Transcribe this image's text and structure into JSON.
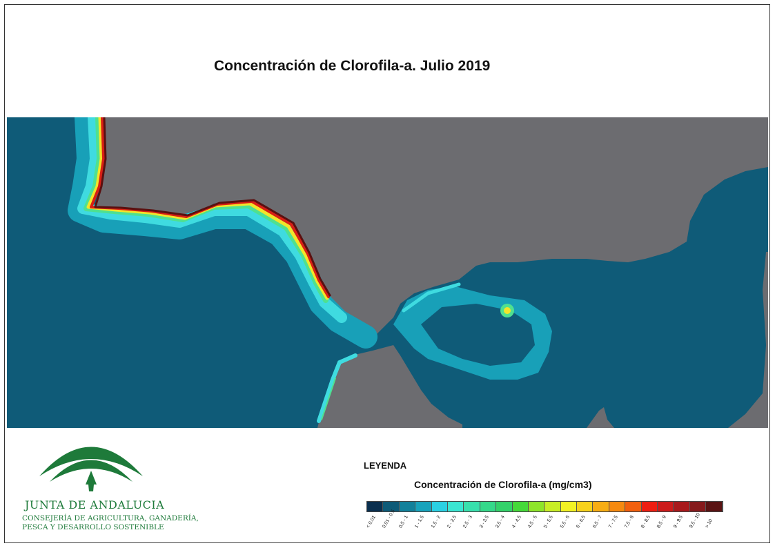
{
  "title": "Concentración de Clorofila-a. Julio 2019",
  "colors": {
    "sea": "#0f5b78",
    "land": "#6c6c70",
    "coast_shelf": "#18a0b8",
    "coast_bright": "#3fdbe0",
    "coast_green": "#4fe090",
    "coast_yellow": "#f2e52a",
    "coast_red": "#d81f14",
    "coast_dark": "#5a1010",
    "logo_green": "#1e7a3a"
  },
  "logo": {
    "name": "JUNTA DE ANDALUCIA",
    "subtitle_line1": "CONSEJERÍA DE AGRICULTURA, GANADERÍA,",
    "subtitle_line2": "PESCA Y DESARROLLO SOSTENIBLE"
  },
  "legend": {
    "heading": "LEYENDA",
    "title": "Concentración de Clorofila-a (mg/cm3)",
    "classes": [
      {
        "label": "< 0.01",
        "color": "#0a2f4f"
      },
      {
        "label": "0.01 - 0.5",
        "color": "#0f5b78"
      },
      {
        "label": "0.5 - 1",
        "color": "#12819b"
      },
      {
        "label": "1 - 1.5",
        "color": "#18a3bc"
      },
      {
        "label": "1.5 - 2",
        "color": "#2bd0e3"
      },
      {
        "label": "2 - 2.5",
        "color": "#3ae6d2"
      },
      {
        "label": "2.5 - 3",
        "color": "#38e0ad"
      },
      {
        "label": "3 - 3.5",
        "color": "#35d98a"
      },
      {
        "label": "3.5 - 4",
        "color": "#33d26a"
      },
      {
        "label": "4 - 4.5",
        "color": "#45d93a"
      },
      {
        "label": "4.5 - 5",
        "color": "#8ee52a"
      },
      {
        "label": "5 - 5.5",
        "color": "#c8ee26"
      },
      {
        "label": "5.5 - 6",
        "color": "#f2f224"
      },
      {
        "label": "6 - 6.5",
        "color": "#f7d21c"
      },
      {
        "label": "6.5 - 7",
        "color": "#f7ad14"
      },
      {
        "label": "7 - 7.5",
        "color": "#f68a10"
      },
      {
        "label": "7.5 - 8",
        "color": "#f2600e"
      },
      {
        "label": "8 - 8.5",
        "color": "#ee1e12"
      },
      {
        "label": "8.5 - 9",
        "color": "#cc1b1b"
      },
      {
        "label": "9 - 9.5",
        "color": "#a8191c"
      },
      {
        "label": "9.5 - 10",
        "color": "#861a1c"
      },
      {
        "label": "> 10",
        "color": "#5a1414"
      }
    ]
  }
}
